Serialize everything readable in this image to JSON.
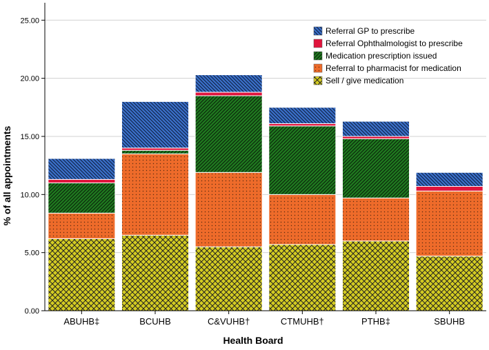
{
  "chart_data": {
    "type": "bar",
    "stacked": true,
    "xlabel": "Health Board",
    "ylabel": "% of all appointments",
    "ylim": [
      0,
      26.5
    ],
    "yticks": [
      0,
      5,
      10,
      15,
      20,
      25
    ],
    "ytick_labels": [
      "0.00",
      "5.00",
      "10.00",
      "15.00",
      "20.00",
      "25.00"
    ],
    "grid": "horizontal",
    "legend_position": "top-right",
    "categories": [
      "ABUHB‡",
      "BCUHB",
      "C&VUHB†",
      "CTMUHB†",
      "PTHB‡",
      "SBUHB"
    ],
    "series": [
      {
        "name": "Sell / give medication",
        "key": "sell",
        "color": "#d4cc22",
        "values": [
          6.2,
          6.5,
          5.5,
          5.7,
          6.0,
          4.7
        ]
      },
      {
        "name": "Referral to pharmacist for medication",
        "key": "pharmacist",
        "color": "#ee6b2a",
        "values": [
          2.2,
          7.0,
          6.4,
          4.3,
          3.7,
          5.6
        ]
      },
      {
        "name": "Medication prescription issued",
        "key": "prescription",
        "color": "#1f7a1f",
        "values": [
          2.6,
          0.3,
          6.6,
          5.9,
          5.1,
          0.0
        ]
      },
      {
        "name": "Referral Ophthalmologist to prescribe",
        "key": "ophthalmologist",
        "color": "#e0143c",
        "values": [
          0.3,
          0.2,
          0.3,
          0.2,
          0.2,
          0.4
        ]
      },
      {
        "name": "Referral GP to prescribe",
        "key": "gp",
        "color": "#3a6fc8",
        "values": [
          1.8,
          4.0,
          1.5,
          1.4,
          1.3,
          1.2
        ]
      }
    ],
    "legend_order": [
      "gp",
      "ophthalmologist",
      "prescription",
      "pharmacist",
      "sell"
    ]
  }
}
